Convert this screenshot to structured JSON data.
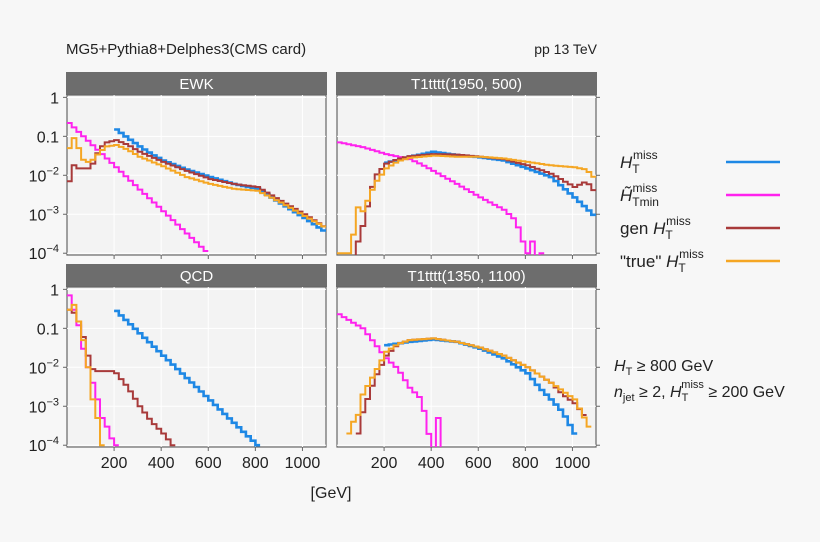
{
  "title": "MG5+Pythia8+Delphes3(CMS card)",
  "energy_label": "pp 13 TeV",
  "x_axis_label": "[GeV]",
  "colors": {
    "strip": "#6d6d6d",
    "panel_bg": "#f3f3f3",
    "page_bg": "#f7f7f7"
  },
  "legend": [
    {
      "pre": "",
      "sym": "H",
      "tilde": false,
      "sub": "T",
      "sup": "miss",
      "color": "#1e88e5"
    },
    {
      "pre": "",
      "sym": "H̃",
      "tilde": true,
      "sub": "Tmin",
      "sup": "miss",
      "color": "#ff22ee"
    },
    {
      "pre": "gen ",
      "sym": "H",
      "tilde": false,
      "sub": "T",
      "sup": "miss",
      "color": "#a83a3a"
    },
    {
      "pre": "\"true\" ",
      "sym": "H",
      "tilde": false,
      "sub": "T",
      "sup": "miss",
      "color": "#f5a623"
    }
  ],
  "cuts": {
    "line1": {
      "sym": "H",
      "sub": "T",
      "rest": " ≥ 800 GeV"
    },
    "line2": {
      "sym": "n",
      "sub": "jet",
      "mid": " ≥ 2, ",
      "sym2": "H",
      "sub2": "T",
      "sup2": "miss",
      "rest": " ≥ 200 GeV"
    }
  },
  "chart_data": {
    "type": "line",
    "style": "step histogram",
    "xlim": [
      0,
      1100
    ],
    "ylim": [
      9e-05,
      1.15
    ],
    "yscale": "log",
    "x_ticks": [
      200,
      400,
      600,
      800,
      1000
    ],
    "x_tick_labels": [
      "200",
      "400",
      "600",
      "800",
      "1000"
    ],
    "y_ticks": [
      1,
      0.1,
      0.01,
      0.001,
      0.0001
    ],
    "y_tick_labels": [
      {
        "base": "1",
        "exp": ""
      },
      {
        "base": "0.1",
        "exp": ""
      },
      {
        "base": "10",
        "exp": "−2"
      },
      {
        "base": "10",
        "exp": "−3"
      },
      {
        "base": "10",
        "exp": "−4"
      }
    ],
    "xlabel": "[GeV]",
    "grid": true,
    "legend_placement": "right",
    "series_names": [
      "H_T^miss",
      "H̃_Tmin^miss",
      "gen H_T^miss",
      "\"true\" H_T^miss"
    ],
    "panels": [
      {
        "title": "EWK",
        "series": [
          {
            "x": [
              200,
              250,
              300,
              350,
              400,
              500,
              600,
              700,
              800,
              900,
              1000,
              1090
            ],
            "y": [
              0.15,
              0.09,
              0.055,
              0.035,
              0.024,
              0.014,
              0.009,
              0.006,
              0.0045,
              0.0019,
              0.0008,
              0.00035
            ]
          },
          {
            "x": [
              0,
              100,
              200,
              300,
              400,
              500,
              590
            ],
            "y": [
              0.22,
              0.059,
              0.016,
              0.0043,
              0.0012,
              0.00032,
              0.0001
            ]
          },
          {
            "x": [
              0,
              20,
              40,
              80,
              100,
              130,
              160,
              200,
              250,
              300,
              400,
              500,
              600,
              700,
              800,
              900,
              1000,
              1090
            ],
            "y": [
              0.007,
              0.018,
              0.015,
              0.015,
              0.02,
              0.05,
              0.07,
              0.08,
              0.06,
              0.04,
              0.022,
              0.013,
              0.008,
              0.006,
              0.005,
              0.0022,
              0.001,
              0.00045
            ]
          },
          {
            "x": [
              0,
              20,
              40,
              60,
              80,
              100,
              130,
              160,
              200,
              250,
              300,
              400,
              500,
              600,
              700,
              800,
              900,
              1000,
              1090
            ],
            "y": [
              0.05,
              0.09,
              0.05,
              0.025,
              0.022,
              0.025,
              0.04,
              0.055,
              0.06,
              0.045,
              0.03,
              0.017,
              0.009,
              0.006,
              0.0045,
              0.004,
              0.002,
              0.0009,
              0.00045
            ]
          }
        ]
      },
      {
        "title": "T1tttt(1950, 500)",
        "series": [
          {
            "x": [
              200,
              250,
              300,
              400,
              500,
              600,
              700,
              800,
              900,
              1000,
              1090
            ],
            "y": [
              0.021,
              0.025,
              0.03,
              0.04,
              0.033,
              0.029,
              0.024,
              0.015,
              0.009,
              0.0027,
              0.00085
            ]
          },
          {
            "x": [
              0,
              100,
              200,
              300,
              350,
              400,
              500,
              600,
              700,
              750,
              780,
              800,
              820,
              840,
              860
            ],
            "y": [
              0.07,
              0.053,
              0.035,
              0.026,
              0.019,
              0.013,
              0.006,
              0.0027,
              0.0013,
              0.0007,
              0.0002,
              0.0001,
              0.0002,
              5e-05,
              0.0001
            ]
          },
          {
            "x": [
              60,
              80,
              100,
              150,
              200,
              250,
              300,
              400,
              500,
              600,
              700,
              800,
              900,
              1000,
              1050,
              1090
            ],
            "y": [
              8e-05,
              0.0002,
              0.0005,
              0.009,
              0.02,
              0.026,
              0.031,
              0.035,
              0.034,
              0.03,
              0.026,
              0.018,
              0.011,
              0.005,
              0.007,
              0.0035
            ]
          },
          {
            "x": [
              0,
              40,
              60,
              80,
              100,
              130,
              150,
              200,
              250,
              300,
              400,
              500,
              600,
              700,
              800,
              900,
              1000,
              1050,
              1090
            ],
            "y": [
              0.0001,
              0.0001,
              0.0003,
              0.0015,
              0.0012,
              0.003,
              0.006,
              0.015,
              0.023,
              0.028,
              0.032,
              0.03,
              0.03,
              0.027,
              0.022,
              0.018,
              0.016,
              0.014,
              0.008
            ]
          }
        ]
      },
      {
        "title": "QCD",
        "series": [
          {
            "x": [
              200,
              800
            ],
            "y": [
              0.28,
              0.0001
            ]
          },
          {
            "x": [
              0,
              20,
              40,
              60,
              80,
              100,
              120,
              140,
              160,
              180,
              200
            ],
            "y": [
              0.7,
              0.3,
              0.12,
              0.03,
              0.01,
              0.004,
              0.0015,
              0.0005,
              0.0003,
              0.00015,
              0.0001
            ]
          },
          {
            "x": [
              0,
              20,
              40,
              60,
              80,
              100,
              120,
              180,
              200,
              250,
              300,
              350,
              400,
              440
            ],
            "y": [
              0.3,
              0.25,
              0.15,
              0.06,
              0.02,
              0.009,
              0.008,
              0.008,
              0.007,
              0.003,
              0.001,
              0.0004,
              0.0002,
              0.0001
            ]
          },
          {
            "x": [
              0,
              20,
              40,
              60,
              80,
              100,
              120,
              140
            ],
            "y": [
              0.3,
              0.4,
              0.15,
              0.05,
              0.01,
              0.0015,
              0.0005,
              0.0001
            ]
          }
        ]
      },
      {
        "title": "T1tttt(1350, 1100)",
        "series": [
          {
            "x": [
              200,
              300,
              400,
              500,
              600,
              700,
              800,
              850,
              900,
              950,
              1000
            ],
            "y": [
              0.037,
              0.045,
              0.052,
              0.045,
              0.03,
              0.017,
              0.007,
              0.003,
              0.0015,
              0.0007,
              0.0002
            ]
          },
          {
            "x": [
              0,
              100,
              200,
              250,
              300,
              350,
              400,
              420,
              440
            ],
            "y": [
              0.23,
              0.1,
              0.017,
              0.009,
              0.003,
              0.0015,
              5e-05,
              0.0005,
              5e-05
            ]
          },
          {
            "x": [
              80,
              100,
              150,
              200,
              250,
              300,
              400,
              500,
              600,
              700,
              800,
              900,
              950,
              1000,
              1050
            ],
            "y": [
              0.0002,
              0.0007,
              0.005,
              0.02,
              0.04,
              0.05,
              0.055,
              0.045,
              0.032,
              0.02,
              0.01,
              0.004,
              0.002,
              0.0012,
              0.0005
            ]
          },
          {
            "x": [
              40,
              60,
              80,
              100,
              150,
              200,
              250,
              300,
              400,
              500,
              600,
              700,
              800,
              900,
              1000,
              1060
            ],
            "y": [
              0.0002,
              0.0004,
              0.0006,
              0.002,
              0.007,
              0.025,
              0.04,
              0.05,
              0.055,
              0.045,
              0.032,
              0.02,
              0.01,
              0.004,
              0.0015,
              0.0003
            ]
          }
        ]
      }
    ]
  }
}
